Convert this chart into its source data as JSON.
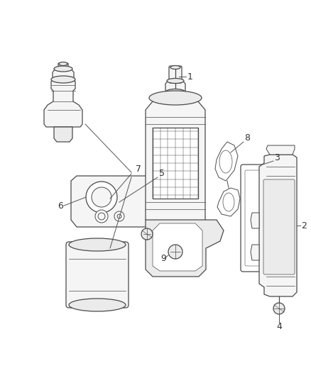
{
  "bg_color": "#ffffff",
  "line_color": "#4a4a4a",
  "label_color": "#333333",
  "fig_width": 4.38,
  "fig_height": 5.33,
  "dpi": 100
}
